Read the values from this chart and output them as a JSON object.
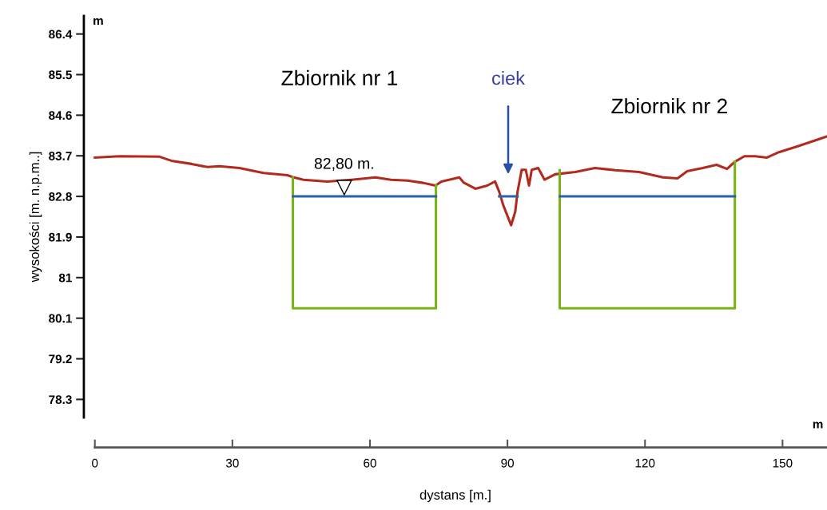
{
  "chart_data": {
    "type": "line",
    "xlabel": "dystans [m.]",
    "ylabel": "wysokości [m. n.p.m..]",
    "xlim": [
      -2.4,
      159.7
    ],
    "xticks": [
      0,
      30,
      60,
      90,
      120,
      150
    ],
    "ylim": [
      77.9,
      86.8
    ],
    "yticks": [
      86.4,
      85.5,
      84.6,
      83.7,
      82.8,
      81.9,
      81,
      80.1,
      79.2,
      78.3
    ],
    "grid": false,
    "legend": false,
    "line_style": "solid",
    "marker": "none",
    "series": [
      {
        "color": "#b22a1e",
        "x": [
          0,
          5.4,
          14.1,
          16.7,
          21.1,
          24.6,
          27.2,
          31.5,
          36.8,
          42.0,
          43.4,
          45.5,
          50.7,
          56.0,
          61.2,
          64.6,
          68.2,
          71.6,
          74.3,
          75.6,
          79.5,
          80.4,
          83.0,
          85.6,
          87.3,
          88.2,
          89.1,
          90.3,
          90.8,
          91.7,
          92.2,
          93.1,
          94.0,
          94.7,
          95.3,
          96.7,
          98.1,
          100.4,
          104.8,
          109.1,
          113.5,
          118.7,
          123.9,
          127.1,
          129.2,
          132.6,
          135.6,
          137.9,
          139.6,
          141.7,
          144.0,
          146.6,
          149.2,
          153.6,
          157.1,
          159.7
        ],
        "values": [
          83.66,
          83.69,
          83.68,
          83.59,
          83.52,
          83.45,
          83.47,
          83.43,
          83.32,
          83.27,
          83.22,
          83.17,
          83.13,
          83.17,
          83.22,
          83.17,
          83.15,
          83.1,
          83.04,
          83.13,
          83.22,
          83.11,
          82.97,
          83.04,
          83.13,
          82.9,
          82.6,
          82.29,
          82.16,
          82.46,
          82.9,
          83.39,
          83.39,
          83.04,
          83.39,
          83.43,
          83.17,
          83.29,
          83.34,
          83.43,
          83.38,
          83.34,
          83.22,
          83.2,
          83.36,
          83.43,
          83.5,
          83.41,
          83.57,
          83.69,
          83.69,
          83.66,
          83.78,
          83.92,
          84.04,
          84.13
        ]
      },
      {
        "color": "#7ab317",
        "x": [
          43.2,
          43.2,
          74.4,
          74.4,
          null,
          101.4,
          101.4,
          139.6,
          139.6
        ],
        "values": [
          83.22,
          80.32,
          80.32,
          83.05,
          null,
          83.38,
          80.32,
          80.32,
          83.57
        ]
      },
      {
        "color": "#2a62a8",
        "x": [
          43.2,
          74.4,
          null,
          88.2,
          92.2,
          null,
          101.4,
          139.6
        ],
        "values": [
          82.8,
          82.8,
          null,
          82.8,
          82.8,
          null,
          82.8,
          82.8
        ]
      }
    ],
    "annotations": [
      "Zbiornik nr 1",
      "Zbiornik nr 2",
      "ciek",
      {
        "text": "82,80 m.",
        "x": 54.4,
        "y": 82.8
      },
      "m",
      "m"
    ]
  }
}
